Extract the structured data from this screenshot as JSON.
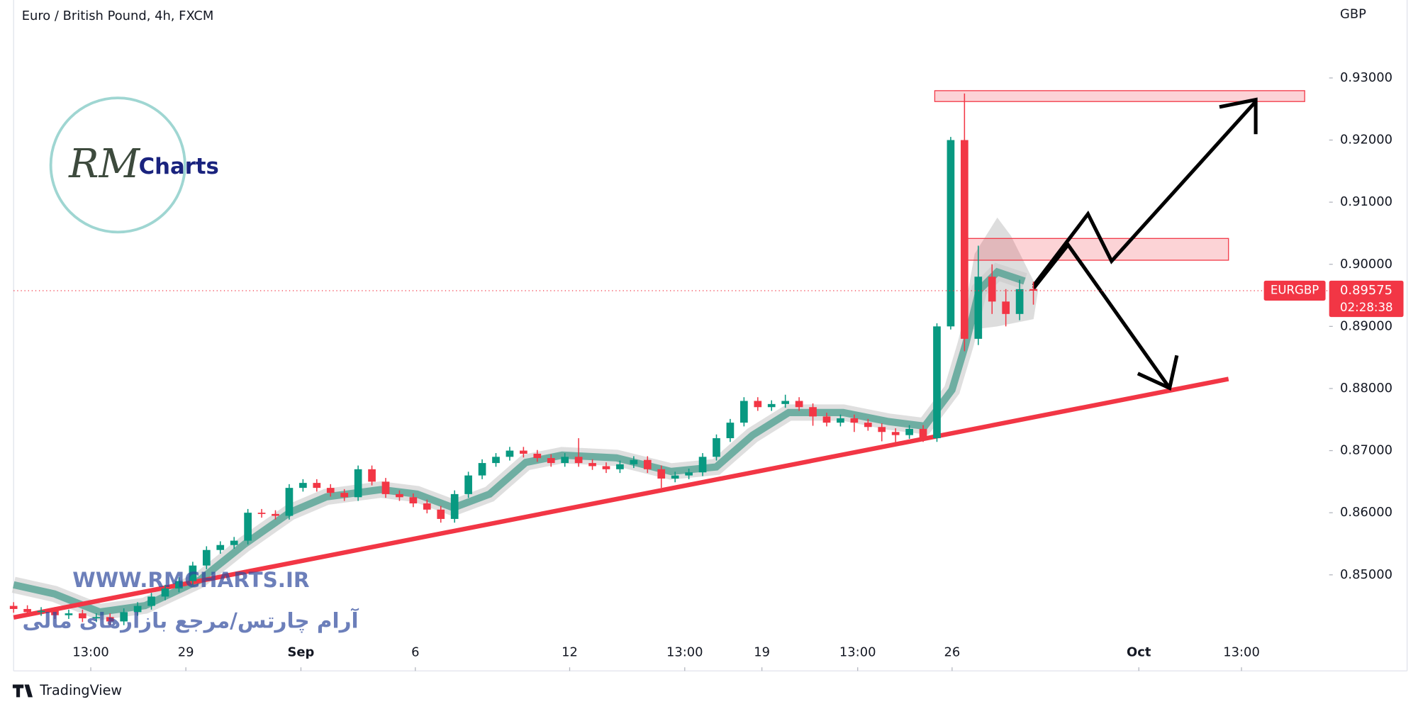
{
  "header": {
    "title": "Euro / British Pound, 4h, FXCM"
  },
  "logo": {
    "mark": "RM",
    "text": "Charts"
  },
  "watermark": {
    "url": "WWW.RMCHARTS.IR",
    "tagline": "آرام چارتس/مرجع بازارهای مالی"
  },
  "footer": {
    "brand": "TradingView"
  },
  "chart_data": {
    "type": "candlestick",
    "symbol": "EURGBP",
    "currency": "GBP",
    "countdown": "02:28:38",
    "up_color": "#089981",
    "down_color": "#f23645",
    "grid": false,
    "xlim": [
      0,
      190
    ],
    "ylim": [
      0.83453,
      0.94255
    ],
    "yticks": [
      {
        "value": 0.85,
        "label": "0.85000"
      },
      {
        "value": 0.86,
        "label": "0.86000"
      },
      {
        "value": 0.87,
        "label": "0.87000"
      },
      {
        "value": 0.88,
        "label": "0.88000"
      },
      {
        "value": 0.89,
        "label": "0.89000"
      },
      {
        "value": 0.9,
        "label": "0.90000"
      },
      {
        "value": 0.91,
        "label": "0.91000"
      },
      {
        "value": 0.92,
        "label": "0.92000"
      },
      {
        "value": 0.93,
        "label": "0.93000"
      }
    ],
    "xticks": [
      {
        "value": 11.2,
        "label": "13:00"
      },
      {
        "value": 25,
        "label": "29"
      },
      {
        "value": 41.7,
        "label": "Sep"
      },
      {
        "value": 58.3,
        "label": "6"
      },
      {
        "value": 80.7,
        "label": "12"
      },
      {
        "value": 97.4,
        "label": "13:00"
      },
      {
        "value": 108.6,
        "label": "19"
      },
      {
        "value": 122.5,
        "label": "13:00"
      },
      {
        "value": 136.2,
        "label": "26"
      },
      {
        "value": 163.3,
        "label": "Oct"
      },
      {
        "value": 178.2,
        "label": "13:00"
      }
    ],
    "x": [
      0,
      2,
      4,
      6,
      8,
      10,
      12,
      14,
      16,
      18,
      20,
      22,
      24,
      26,
      28,
      30,
      32,
      34,
      36,
      38,
      40,
      42,
      44,
      46,
      48,
      50,
      52,
      54,
      56,
      58,
      60,
      62,
      64,
      66,
      68,
      70,
      72,
      74,
      76,
      78,
      80,
      82,
      84,
      86,
      88,
      90,
      92,
      94,
      96,
      98,
      100,
      102,
      104,
      106,
      108,
      110,
      112,
      114,
      116,
      118,
      120,
      122,
      124,
      126,
      128,
      130,
      132,
      134,
      136,
      138,
      140,
      142,
      144,
      146,
      148
    ],
    "open": [
      0.845,
      0.8445,
      0.844,
      0.8442,
      0.8435,
      0.8438,
      0.843,
      0.8432,
      0.8425,
      0.844,
      0.845,
      0.8465,
      0.8478,
      0.849,
      0.8515,
      0.854,
      0.8548,
      0.8555,
      0.86,
      0.8598,
      0.8595,
      0.864,
      0.8648,
      0.864,
      0.8632,
      0.8625,
      0.867,
      0.865,
      0.863,
      0.8625,
      0.8615,
      0.8605,
      0.859,
      0.863,
      0.866,
      0.868,
      0.869,
      0.87,
      0.8695,
      0.8688,
      0.868,
      0.869,
      0.868,
      0.8675,
      0.867,
      0.8678,
      0.8685,
      0.867,
      0.8655,
      0.866,
      0.8665,
      0.869,
      0.872,
      0.8745,
      0.878,
      0.877,
      0.8775,
      0.878,
      0.877,
      0.8755,
      0.8745,
      0.8752,
      0.8745,
      0.8738,
      0.873,
      0.8725,
      0.8735,
      0.872,
      0.89,
      0.92,
      0.888,
      0.898,
      0.894,
      0.892,
      0.896
    ],
    "high": [
      0.8456,
      0.8451,
      0.8448,
      0.8448,
      0.8444,
      0.8444,
      0.8438,
      0.8438,
      0.8446,
      0.8456,
      0.8471,
      0.8484,
      0.8496,
      0.8521,
      0.8546,
      0.8554,
      0.8561,
      0.8606,
      0.8606,
      0.8604,
      0.8646,
      0.8654,
      0.8654,
      0.8646,
      0.8638,
      0.8676,
      0.8676,
      0.8656,
      0.8636,
      0.8631,
      0.8621,
      0.8611,
      0.8636,
      0.8666,
      0.8686,
      0.8696,
      0.8706,
      0.8706,
      0.8701,
      0.8694,
      0.8696,
      0.872,
      0.8686,
      0.8681,
      0.8684,
      0.8691,
      0.8691,
      0.8676,
      0.8666,
      0.8671,
      0.8696,
      0.8726,
      0.8751,
      0.8786,
      0.8786,
      0.8781,
      0.879,
      0.8786,
      0.8776,
      0.8761,
      0.8758,
      0.8758,
      0.8751,
      0.8744,
      0.8736,
      0.8741,
      0.8741,
      0.8905,
      0.9205,
      0.9275,
      0.903,
      0.9,
      0.896,
      0.8975,
      0.8972
    ],
    "low": [
      0.8439,
      0.8434,
      0.8434,
      0.8429,
      0.8429,
      0.8424,
      0.8424,
      0.8419,
      0.8419,
      0.8434,
      0.8444,
      0.8459,
      0.8472,
      0.8484,
      0.8509,
      0.8534,
      0.8542,
      0.8549,
      0.8592,
      0.8589,
      0.8589,
      0.8634,
      0.8634,
      0.8626,
      0.8619,
      0.8619,
      0.8644,
      0.8624,
      0.8619,
      0.8609,
      0.8599,
      0.8584,
      0.8584,
      0.8624,
      0.8654,
      0.8674,
      0.8684,
      0.8689,
      0.8682,
      0.8674,
      0.8674,
      0.8674,
      0.8669,
      0.8664,
      0.8664,
      0.8672,
      0.8664,
      0.864,
      0.8649,
      0.8654,
      0.8659,
      0.8684,
      0.8714,
      0.8739,
      0.8764,
      0.8764,
      0.8769,
      0.8764,
      0.874,
      0.8739,
      0.8739,
      0.873,
      0.8732,
      0.8715,
      0.871,
      0.8719,
      0.8714,
      0.8714,
      0.8895,
      0.886,
      0.887,
      0.892,
      0.89,
      0.891,
      0.8935
    ],
    "close": [
      0.8445,
      0.844,
      0.8442,
      0.8435,
      0.8438,
      0.843,
      0.8432,
      0.8425,
      0.844,
      0.845,
      0.8465,
      0.8478,
      0.849,
      0.8515,
      0.854,
      0.8548,
      0.8555,
      0.86,
      0.8598,
      0.8595,
      0.864,
      0.8648,
      0.864,
      0.8632,
      0.8625,
      0.867,
      0.865,
      0.863,
      0.8625,
      0.8615,
      0.8605,
      0.859,
      0.863,
      0.866,
      0.868,
      0.869,
      0.87,
      0.8695,
      0.8688,
      0.868,
      0.869,
      0.868,
      0.8675,
      0.867,
      0.8678,
      0.8685,
      0.867,
      0.8655,
      0.866,
      0.8665,
      0.869,
      0.872,
      0.8745,
      0.878,
      0.877,
      0.8775,
      0.878,
      0.877,
      0.8755,
      0.8745,
      0.8752,
      0.8745,
      0.8738,
      0.873,
      0.8725,
      0.8735,
      0.872,
      0.89,
      0.92,
      0.888,
      0.898,
      0.894,
      0.892,
      0.896,
      0.89575
    ]
  }
}
